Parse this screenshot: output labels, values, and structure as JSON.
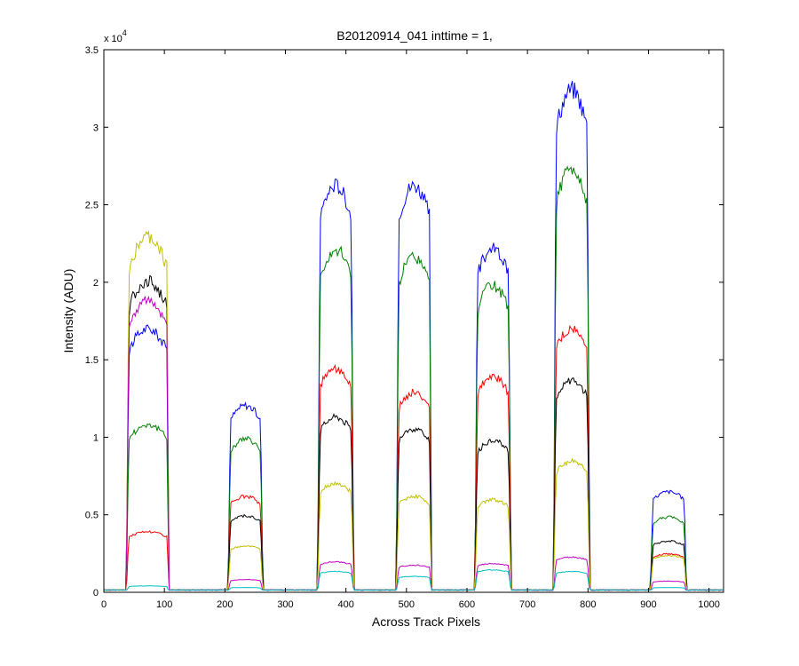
{
  "chart_data": {
    "type": "line",
    "title": "B20120914_041 inttime = 1,",
    "xlabel": "Across Track Pixels",
    "ylabel": "Intensity (ADU)",
    "y_exponent_label": "x 10",
    "y_exponent_power": "4",
    "xlim": [
      0,
      1024
    ],
    "ylim": [
      0,
      3.5
    ],
    "x_ticks": [
      0,
      100,
      200,
      300,
      400,
      500,
      600,
      700,
      800,
      900,
      1000
    ],
    "y_ticks": [
      0,
      0.5,
      1,
      1.5,
      2,
      2.5,
      3,
      3.5
    ],
    "x_tick_labels": [
      "0",
      "100",
      "200",
      "300",
      "400",
      "500",
      "600",
      "700",
      "800",
      "900",
      "1000"
    ],
    "y_tick_labels": [
      "0",
      "0.5",
      "1",
      "1.5",
      "2",
      "2.5",
      "3",
      "3.5"
    ],
    "grid": false,
    "baseline": 0.015,
    "segments": [
      {
        "start": 37,
        "end": 108
      },
      {
        "start": 205,
        "end": 263
      },
      {
        "start": 353,
        "end": 413
      },
      {
        "start": 483,
        "end": 542
      },
      {
        "start": 613,
        "end": 673
      },
      {
        "start": 743,
        "end": 803
      },
      {
        "start": 903,
        "end": 963
      }
    ],
    "series": [
      {
        "color": "#0000ff",
        "plateaus": [
          1.65,
          1.17,
          2.55,
          2.55,
          2.15,
          3.15,
          0.63
        ]
      },
      {
        "color": "#008000",
        "plateaus": [
          1.05,
          0.96,
          2.15,
          2.1,
          1.92,
          2.65,
          0.47
        ]
      },
      {
        "color": "#ff0000",
        "plateaus": [
          0.38,
          0.6,
          1.4,
          1.25,
          1.35,
          1.65,
          0.24
        ]
      },
      {
        "color": "#000000",
        "plateaus": [
          1.95,
          0.48,
          1.1,
          1.02,
          0.95,
          1.33,
          0.32
        ]
      },
      {
        "color": "#c0c000",
        "plateaus": [
          2.22,
          0.29,
          0.68,
          0.6,
          0.58,
          0.82,
          0.23
        ]
      },
      {
        "color": "#c000c0",
        "plateaus": [
          1.83,
          0.08,
          0.19,
          0.17,
          0.18,
          0.22,
          0.07
        ]
      },
      {
        "color": "#00c0c0",
        "plateaus": [
          0.04,
          0.03,
          0.13,
          0.1,
          0.14,
          0.13,
          0.03
        ]
      }
    ]
  }
}
